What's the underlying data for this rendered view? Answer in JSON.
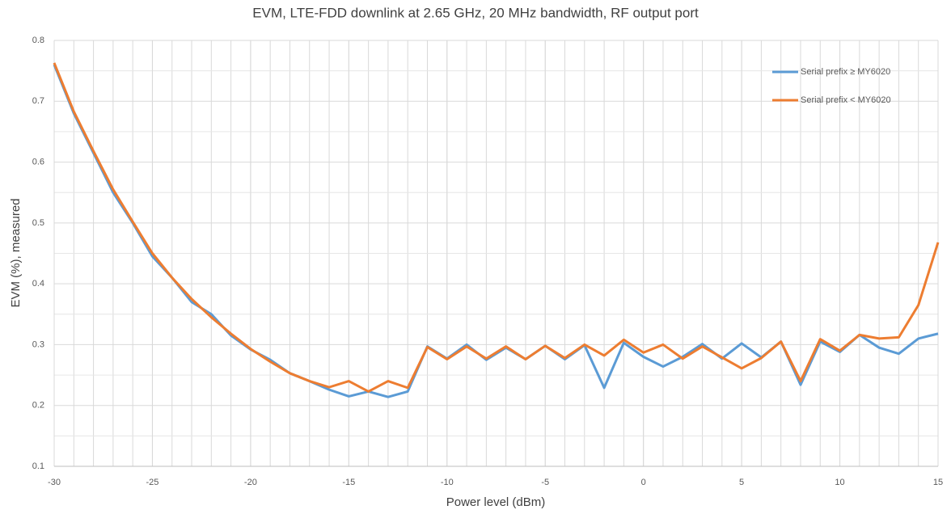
{
  "chart_data": {
    "type": "line",
    "title": "EVM, LTE-FDD downlink at 2.65 GHz, 20 MHz bandwidth, RF output port",
    "x_label": "Power level (dBm)",
    "y_label": "EVM (%), measured",
    "x": [
      -30,
      -29,
      -28,
      -27,
      -26,
      -25,
      -24,
      -23,
      -22,
      -21,
      -20,
      -19,
      -18,
      -17,
      -16,
      -15,
      -14,
      -13,
      -12,
      -11,
      -10,
      -9,
      -8,
      -7,
      -6,
      -5,
      -4,
      -3,
      -2,
      -1,
      0,
      1,
      2,
      3,
      4,
      5,
      6,
      7,
      8,
      9,
      10,
      11,
      12,
      13,
      14,
      15
    ],
    "series": [
      {
        "name": "Serial prefix ≥ MY6020",
        "color": "#5b9bd5",
        "values": [
          0.76,
          0.68,
          0.615,
          0.55,
          0.5,
          0.445,
          0.41,
          0.37,
          0.35,
          0.315,
          0.292,
          0.275,
          0.253,
          0.24,
          0.226,
          0.215,
          0.223,
          0.214,
          0.223,
          0.297,
          0.277,
          0.3,
          0.275,
          0.295,
          0.276,
          0.298,
          0.276,
          0.299,
          0.229,
          0.303,
          0.28,
          0.264,
          0.28,
          0.301,
          0.277,
          0.302,
          0.279,
          0.305,
          0.234,
          0.305,
          0.288,
          0.316,
          0.295,
          0.285,
          0.31,
          0.318
        ]
      },
      {
        "name": "Serial prefix < MY6020",
        "color": "#ed7d31",
        "values": [
          0.763,
          0.683,
          0.618,
          0.555,
          0.502,
          0.45,
          0.41,
          0.375,
          0.345,
          0.318,
          0.293,
          0.272,
          0.253,
          0.24,
          0.23,
          0.24,
          0.223,
          0.24,
          0.229,
          0.296,
          0.276,
          0.297,
          0.277,
          0.297,
          0.276,
          0.298,
          0.278,
          0.3,
          0.282,
          0.308,
          0.287,
          0.3,
          0.277,
          0.297,
          0.279,
          0.261,
          0.278,
          0.305,
          0.24,
          0.309,
          0.29,
          0.316,
          0.31,
          0.312,
          0.365,
          0.468
        ]
      }
    ],
    "xlim": [
      -30,
      15
    ],
    "xticks": [
      -30,
      -25,
      -20,
      -15,
      -10,
      -5,
      0,
      5,
      10,
      15
    ],
    "ylim": [
      0.1,
      0.8
    ],
    "yticks": [
      0.1,
      0.2,
      0.3,
      0.4,
      0.5,
      0.6,
      0.7,
      0.8
    ],
    "grid": true,
    "legend": "upper right"
  }
}
